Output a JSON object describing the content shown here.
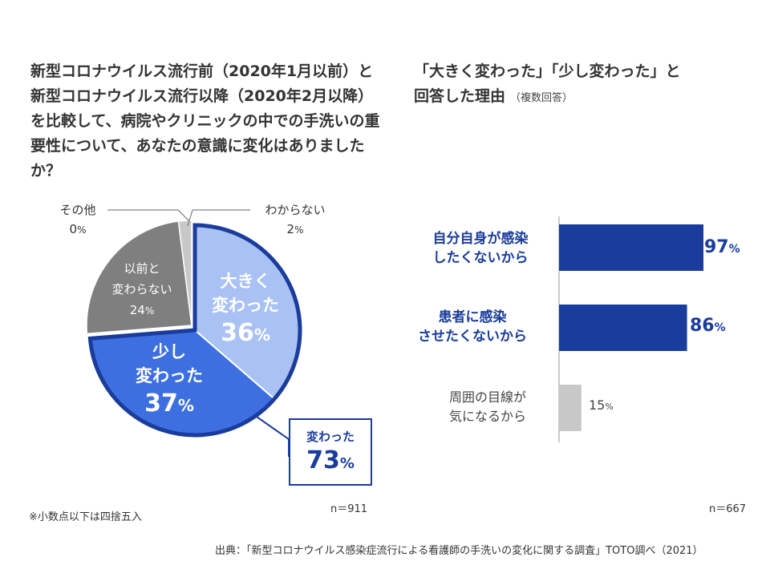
{
  "left": {
    "title": "新型コロナウイルス流行前（2020年1月以前）と新型コロナウイルス流行以降（2020年2月以降）を比較して、病院やクリニックの中での手洗いの重要性について、あなたの意識に変化はありましたか？",
    "n": "n＝911",
    "footnote": "※小数点以下は四捨五入",
    "callout_label": "変わった",
    "callout_value": "73",
    "callout_unit": "%"
  },
  "right": {
    "title_line1": "「大きく変わった」「少し変わった」と",
    "title_line2": "回答した理由",
    "title_note": "（複数回答）",
    "n": "n＝667"
  },
  "source": "出典：「新型コロナウイルス感染症流行による看護師の手洗いの変化に関する調査」TOTO調べ（2021）",
  "colors": {
    "dark_blue": "#1a3c9c",
    "mid_blue": "#3d6fe0",
    "light_blue": "#a9c1f3",
    "gray": "#7f7f7f",
    "light_gray": "#c8c8c8"
  },
  "chart_data": [
    {
      "type": "pie",
      "slices": [
        {
          "label": "大きく変わった",
          "value": 36,
          "unit": "%",
          "color": "#a9c1f3"
        },
        {
          "label": "少し変わった",
          "value": 37,
          "unit": "%",
          "color": "#3d6fe0"
        },
        {
          "label": "以前と変わらない",
          "value": 24,
          "unit": "%",
          "color": "#7f7f7f"
        },
        {
          "label": "その他",
          "value": 0,
          "unit": "%",
          "color": "#c8c8c8"
        },
        {
          "label": "わからない",
          "value": 2,
          "unit": "%",
          "color": "#c8c8c8"
        }
      ]
    },
    {
      "type": "bar",
      "orientation": "horizontal",
      "categories": [
        "自分自身が感染したくないから",
        "患者に感染させたくないから",
        "周囲の目線が気になるから"
      ],
      "values": [
        97,
        86,
        15
      ],
      "unit": "%",
      "xlim": [
        0,
        100
      ]
    }
  ]
}
